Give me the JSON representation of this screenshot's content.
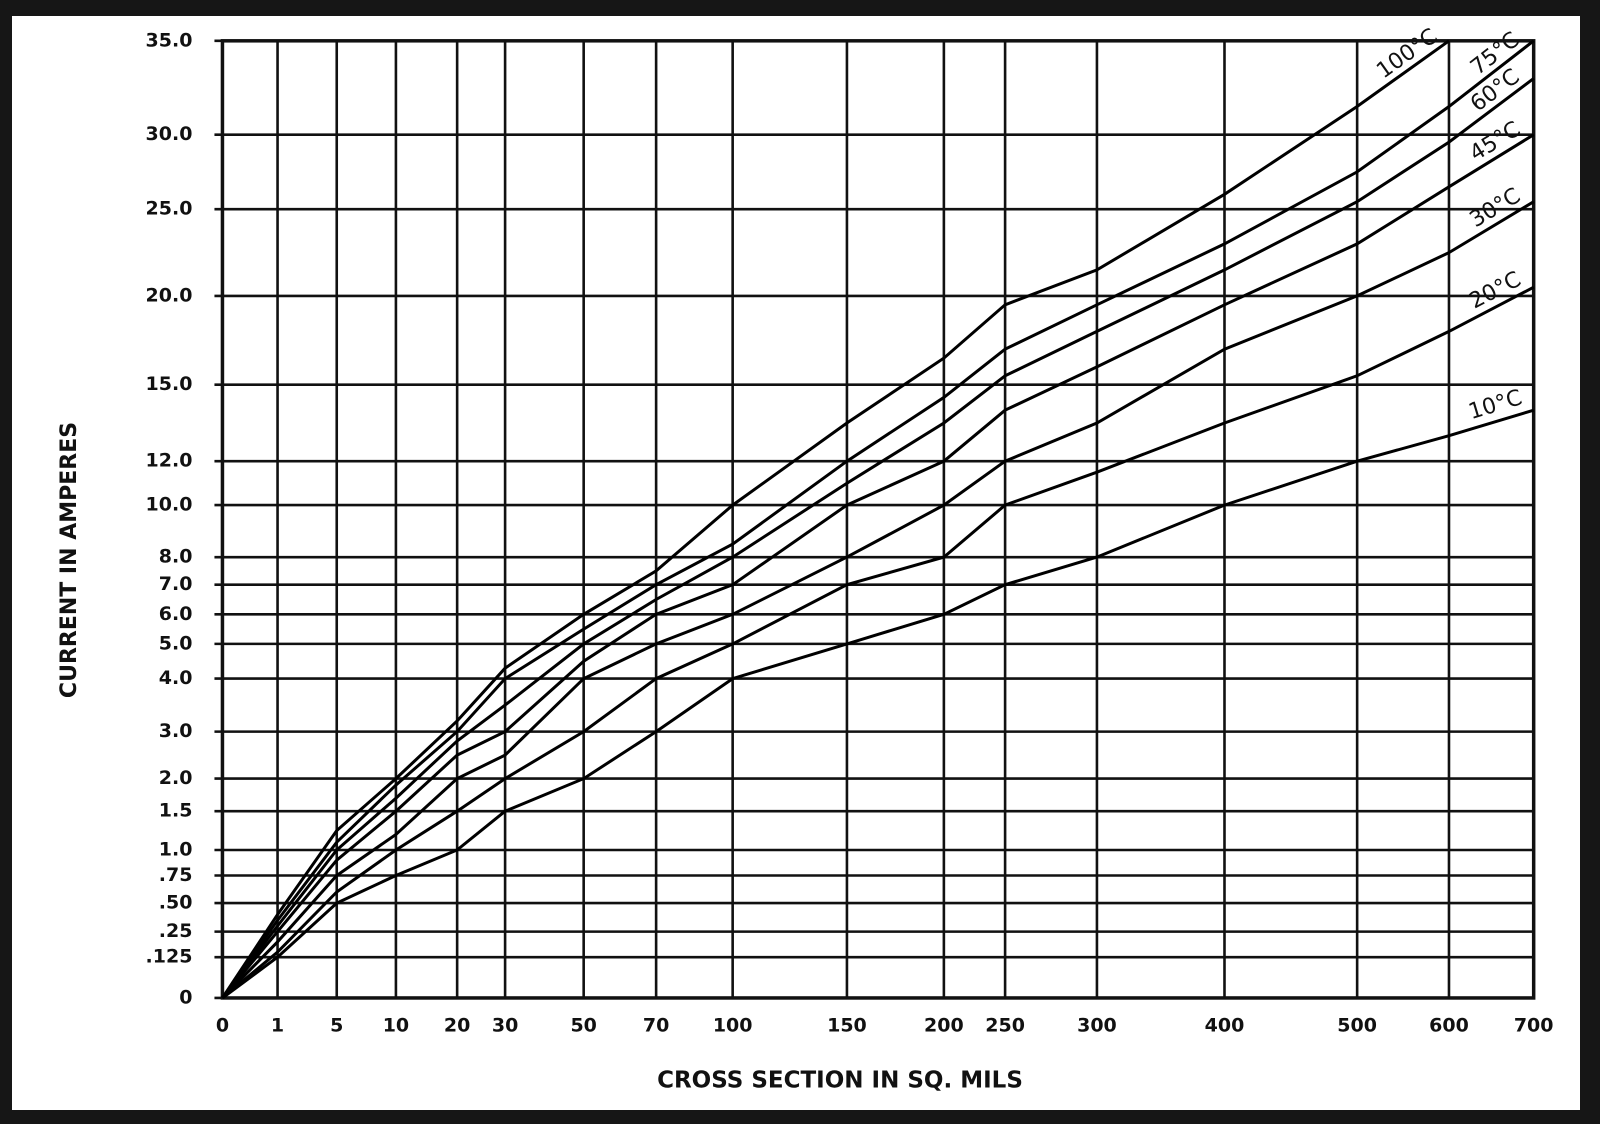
{
  "chart_data": {
    "type": "line",
    "xlabel": "CROSS SECTION IN SQ. MILS",
    "ylabel": "CURRENT IN AMPERES",
    "xlim": [
      0,
      700
    ],
    "ylim": [
      0,
      35
    ],
    "xticks": [
      0,
      1,
      5,
      10,
      20,
      30,
      50,
      70,
      100,
      150,
      200,
      250,
      300,
      400,
      500,
      600,
      700
    ],
    "yticks": [
      {
        "value": 35,
        "label": "35.0"
      },
      {
        "value": 30,
        "label": "30.0"
      },
      {
        "value": 25,
        "label": "25.0"
      },
      {
        "value": 20,
        "label": "20.0"
      },
      {
        "value": 15,
        "label": "15.0"
      },
      {
        "value": 12,
        "label": "12.0"
      },
      {
        "value": 10,
        "label": "10.0"
      },
      {
        "value": 8,
        "label": "8.0"
      },
      {
        "value": 7,
        "label": "7.0"
      },
      {
        "value": 6,
        "label": "6.0"
      },
      {
        "value": 5,
        "label": "5.0"
      },
      {
        "value": 4,
        "label": "4.0"
      },
      {
        "value": 3,
        "label": "3.0"
      },
      {
        "value": 2,
        "label": "2.0"
      },
      1.5,
      {
        "value": 1,
        "label": "1.0"
      },
      {
        "value": 0.75,
        "label": ".75"
      },
      {
        "value": 0.5,
        "label": ".50"
      },
      {
        "value": 0.25,
        "label": ".25"
      },
      {
        "value": 0.125,
        "label": ".125"
      },
      0
    ],
    "grid": true,
    "x": [
      0,
      1,
      5,
      10,
      20,
      30,
      50,
      70,
      100,
      150,
      200,
      250,
      300,
      400,
      500,
      600,
      700
    ],
    "series": [
      {
        "name": "100°C",
        "color": "#000000",
        "values": [
          0,
          0.4,
          1.25,
          2.0,
          3.2,
          4.3,
          6.0,
          7.5,
          10.0,
          13.5,
          16.5,
          19.5,
          21.5,
          26.0,
          31.5,
          35.0,
          null
        ]
      },
      {
        "name": "75°C",
        "color": "#000000",
        "values": [
          0,
          0.35,
          1.1,
          1.9,
          3.0,
          4.0,
          5.5,
          7.0,
          8.5,
          12.0,
          14.5,
          17.0,
          19.5,
          23.0,
          27.5,
          31.5,
          35.0
        ]
      },
      {
        "name": "60°C",
        "color": "#000000",
        "values": [
          0,
          0.3,
          1.0,
          1.7,
          2.8,
          3.5,
          5.0,
          6.5,
          8.0,
          11.0,
          13.5,
          15.5,
          18.0,
          21.5,
          25.5,
          29.5,
          33.0
        ]
      },
      {
        "name": "45°C",
        "color": "#000000",
        "values": [
          0,
          0.25,
          0.9,
          1.5,
          2.5,
          3.0,
          4.5,
          6.0,
          7.0,
          10.0,
          12.0,
          14.0,
          16.0,
          19.5,
          23.0,
          26.5,
          30.0
        ]
      },
      {
        "name": "30°C",
        "color": "#000000",
        "values": [
          0,
          0.2,
          0.75,
          1.2,
          2.0,
          2.5,
          4.0,
          5.0,
          6.0,
          8.0,
          10.0,
          12.0,
          13.5,
          17.0,
          20.0,
          22.5,
          25.5
        ]
      },
      {
        "name": "20°C",
        "color": "#000000",
        "values": [
          0,
          0.15,
          0.6,
          1.0,
          1.5,
          2.0,
          3.0,
          4.0,
          5.0,
          7.0,
          8.0,
          10.0,
          11.5,
          13.5,
          15.5,
          18.0,
          20.5
        ]
      },
      {
        "name": "10°C",
        "color": "#000000",
        "values": [
          0,
          0.125,
          0.5,
          0.75,
          1.0,
          1.5,
          2.0,
          3.0,
          4.0,
          5.0,
          6.0,
          7.0,
          8.0,
          10.0,
          12.0,
          13.0,
          14.0
        ]
      }
    ]
  }
}
